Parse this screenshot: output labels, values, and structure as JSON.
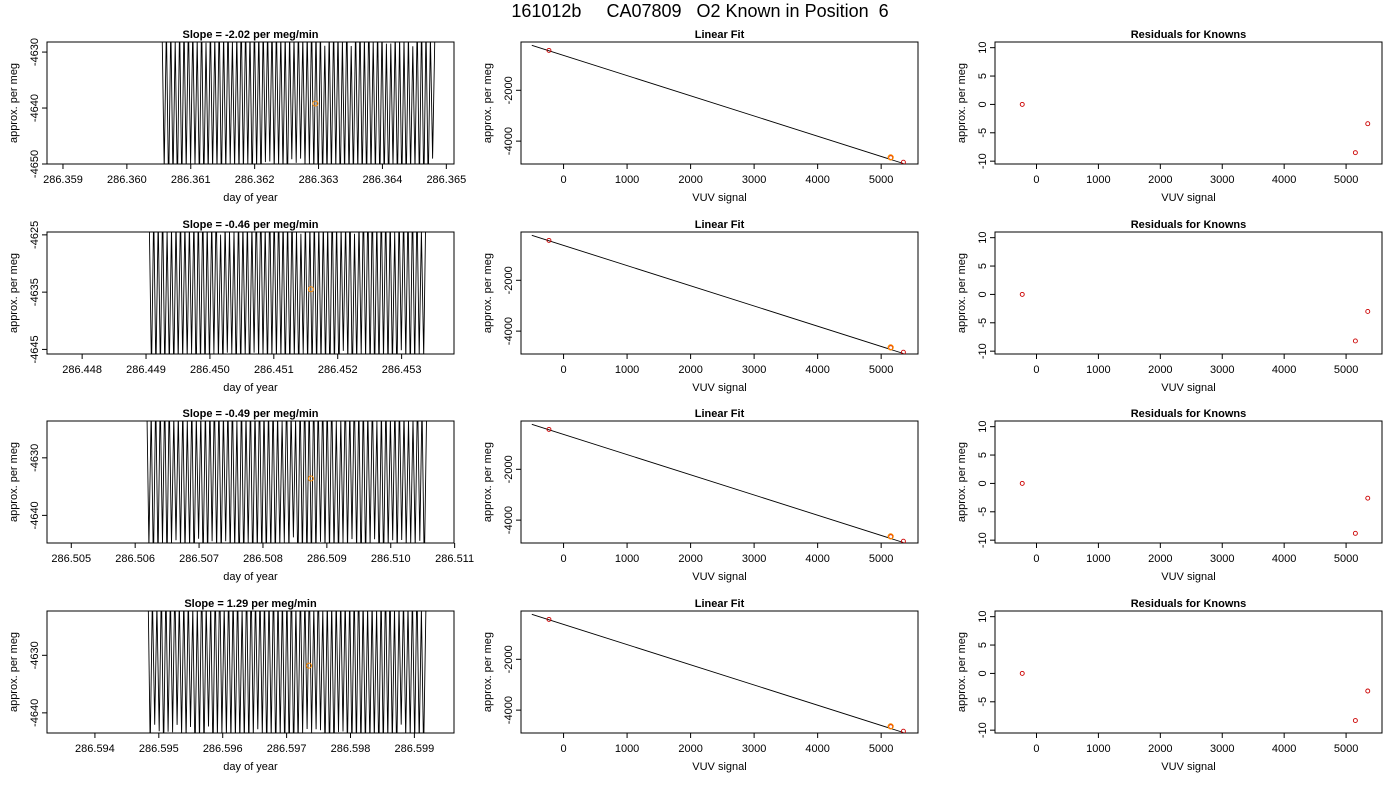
{
  "title": "161012b     CA07809   O2 Known in Position  6",
  "colors": {
    "axis": "#000000",
    "trace": "#000000",
    "fit_line": "#000000",
    "highlight": "#ff8c00",
    "known_marker": "#cc0000"
  },
  "chart_data": [
    {
      "panel": "time-1",
      "type": "line",
      "title": "Slope =  -2.02  per meg/min",
      "xlabel": "day of year",
      "ylabel": "approx. per meg",
      "xlim": [
        286.35875,
        286.36512
      ],
      "ylim": [
        -4650,
        -4628.2
      ],
      "xticks": [
        "286.359",
        "286.360",
        "286.361",
        "286.362",
        "286.363",
        "286.364",
        "286.365"
      ],
      "yticks": [
        "-4630",
        "-4640",
        "-4650"
      ],
      "trace": {
        "x_start": 286.36055,
        "x_end": 286.36482,
        "y_mean": -4639,
        "y_amplitude": 13,
        "y_noise": 3,
        "cycles": 62
      },
      "highlight": {
        "x": 286.36295,
        "y": -4639.2
      }
    },
    {
      "panel": "fit-1",
      "type": "scatter",
      "title": "Linear Fit",
      "xlabel": "VUV signal",
      "ylabel": "approx. per meg",
      "xlim": [
        -670,
        5580
      ],
      "ylim": [
        -4900,
        -100
      ],
      "xticks": [
        "0",
        "1000",
        "2000",
        "3000",
        "4000",
        "5000"
      ],
      "yticks": [
        "-2000",
        "-4000"
      ],
      "fit_line": [
        [
          -500,
          -230
        ],
        [
          5350,
          -4880
        ]
      ],
      "points": [
        {
          "x": -230,
          "y": -430
        },
        {
          "x": 5150,
          "y": -4650
        },
        {
          "x": 5350,
          "y": -4830
        }
      ],
      "highlight": {
        "x": 5150,
        "y": -4640
      }
    },
    {
      "panel": "resid-1",
      "type": "scatter",
      "title": "Residuals for Knowns",
      "xlabel": "VUV signal",
      "ylabel": "approx. per meg",
      "xlim": [
        -670,
        5580
      ],
      "ylim": [
        -10.5,
        11
      ],
      "xticks": [
        "0",
        "1000",
        "2000",
        "3000",
        "4000",
        "5000"
      ],
      "yticks": [
        "-10",
        "-5",
        "0",
        "5",
        "10"
      ],
      "points": [
        {
          "x": -230,
          "y": 0.0
        },
        {
          "x": 5150,
          "y": -8.5
        },
        {
          "x": 5350,
          "y": -3.4
        }
      ]
    },
    {
      "panel": "time-2",
      "type": "line",
      "title": "Slope =  -0.46  per meg/min",
      "xlabel": "day of year",
      "ylabel": "approx. per meg",
      "xlim": [
        286.44745,
        286.45382
      ],
      "ylim": [
        -4645.8,
        -4624.5
      ],
      "xticks": [
        "286.448",
        "286.449",
        "286.450",
        "286.451",
        "286.452",
        "286.453"
      ],
      "yticks": [
        "-4625",
        "-4635",
        "-4645"
      ],
      "trace": {
        "x_start": 286.44905,
        "x_end": 286.45338,
        "y_mean": -4635,
        "y_amplitude": 13,
        "y_noise": 3,
        "cycles": 62
      },
      "highlight": {
        "x": 286.45158,
        "y": -4634.5
      }
    },
    {
      "panel": "fit-2",
      "type": "scatter",
      "title": "Linear Fit",
      "xlabel": "VUV signal",
      "ylabel": "approx. per meg",
      "xlim": [
        -670,
        5580
      ],
      "ylim": [
        -4900,
        -100
      ],
      "xticks": [
        "0",
        "1000",
        "2000",
        "3000",
        "4000",
        "5000"
      ],
      "yticks": [
        "-2000",
        "-4000"
      ],
      "fit_line": [
        [
          -500,
          -230
        ],
        [
          5350,
          -4880
        ]
      ],
      "points": [
        {
          "x": -230,
          "y": -430
        },
        {
          "x": 5150,
          "y": -4650
        },
        {
          "x": 5350,
          "y": -4830
        }
      ],
      "highlight": {
        "x": 5150,
        "y": -4640
      }
    },
    {
      "panel": "resid-2",
      "type": "scatter",
      "title": "Residuals for Knowns",
      "xlabel": "VUV signal",
      "ylabel": "approx. per meg",
      "xlim": [
        -670,
        5580
      ],
      "ylim": [
        -10.5,
        11
      ],
      "xticks": [
        "0",
        "1000",
        "2000",
        "3000",
        "4000",
        "5000"
      ],
      "yticks": [
        "-10",
        "-5",
        "0",
        "5",
        "10"
      ],
      "points": [
        {
          "x": -230,
          "y": 0.0
        },
        {
          "x": 5150,
          "y": -8.2
        },
        {
          "x": 5350,
          "y": -3.0
        }
      ]
    },
    {
      "panel": "time-3",
      "type": "line",
      "title": "Slope =  -0.49  per meg/min",
      "xlabel": "day of year",
      "ylabel": "approx. per meg",
      "xlim": [
        286.50462,
        286.51099
      ],
      "ylim": [
        -4644.8,
        -4623.6
      ],
      "xticks": [
        "286.505",
        "286.506",
        "286.507",
        "286.508",
        "286.509",
        "286.510",
        "286.511"
      ],
      "yticks": [
        "-4630",
        "-4640"
      ],
      "trace": {
        "x_start": 286.50618,
        "x_end": 286.51056,
        "y_mean": -4633.8,
        "y_amplitude": 13,
        "y_noise": 3,
        "cycles": 62
      },
      "highlight": {
        "x": 286.50875,
        "y": -4633.6
      }
    },
    {
      "panel": "fit-3",
      "type": "scatter",
      "title": "Linear Fit",
      "xlabel": "VUV signal",
      "ylabel": "approx. per meg",
      "xlim": [
        -670,
        5580
      ],
      "ylim": [
        -4900,
        -100
      ],
      "xticks": [
        "0",
        "1000",
        "2000",
        "3000",
        "4000",
        "5000"
      ],
      "yticks": [
        "-2000",
        "-4000"
      ],
      "fit_line": [
        [
          -500,
          -230
        ],
        [
          5350,
          -4880
        ]
      ],
      "points": [
        {
          "x": -230,
          "y": -430
        },
        {
          "x": 5150,
          "y": -4650
        },
        {
          "x": 5350,
          "y": -4830
        }
      ],
      "highlight": {
        "x": 5150,
        "y": -4640
      }
    },
    {
      "panel": "resid-3",
      "type": "scatter",
      "title": "Residuals for Knowns",
      "xlabel": "VUV signal",
      "ylabel": "approx. per meg",
      "xlim": [
        -670,
        5580
      ],
      "ylim": [
        -10.5,
        11
      ],
      "xticks": [
        "0",
        "1000",
        "2000",
        "3000",
        "4000",
        "5000"
      ],
      "yticks": [
        "-10",
        "-5",
        "0",
        "5",
        "10"
      ],
      "points": [
        {
          "x": -230,
          "y": 0.0
        },
        {
          "x": 5150,
          "y": -8.8
        },
        {
          "x": 5350,
          "y": -2.6
        }
      ]
    },
    {
      "panel": "time-4",
      "type": "line",
      "title": "Slope =  1.29  per meg/min",
      "xlabel": "day of year",
      "ylabel": "approx. per meg",
      "xlim": [
        286.59325,
        286.59962
      ],
      "ylim": [
        -4643.5,
        -4622.3
      ],
      "xticks": [
        "286.594",
        "286.595",
        "286.596",
        "286.597",
        "286.598",
        "286.599"
      ],
      "yticks": [
        "-4630",
        "-4640"
      ],
      "trace": {
        "x_start": 286.59483,
        "x_end": 286.59918,
        "y_mean": -4632,
        "y_amplitude": 13,
        "y_noise": 3,
        "cycles": 62
      },
      "highlight": {
        "x": 286.59735,
        "y": -4631.8
      }
    },
    {
      "panel": "fit-4",
      "type": "scatter",
      "title": "Linear Fit",
      "xlabel": "VUV signal",
      "ylabel": "approx. per meg",
      "xlim": [
        -670,
        5580
      ],
      "ylim": [
        -4900,
        -100
      ],
      "xticks": [
        "0",
        "1000",
        "2000",
        "3000",
        "4000",
        "5000"
      ],
      "yticks": [
        "-2000",
        "-4000"
      ],
      "fit_line": [
        [
          -500,
          -230
        ],
        [
          5350,
          -4880
        ]
      ],
      "points": [
        {
          "x": -230,
          "y": -430
        },
        {
          "x": 5150,
          "y": -4650
        },
        {
          "x": 5350,
          "y": -4830
        }
      ],
      "highlight": {
        "x": 5150,
        "y": -4640
      }
    },
    {
      "panel": "resid-4",
      "type": "scatter",
      "title": "Residuals for Knowns",
      "xlabel": "VUV signal",
      "ylabel": "approx. per meg",
      "xlim": [
        -670,
        5580
      ],
      "ylim": [
        -10.5,
        11
      ],
      "xticks": [
        "0",
        "1000",
        "2000",
        "3000",
        "4000",
        "5000"
      ],
      "yticks": [
        "-10",
        "-5",
        "0",
        "5",
        "10"
      ],
      "points": [
        {
          "x": -230,
          "y": 0.0
        },
        {
          "x": 5150,
          "y": -8.3
        },
        {
          "x": 5350,
          "y": -3.1
        }
      ]
    }
  ]
}
